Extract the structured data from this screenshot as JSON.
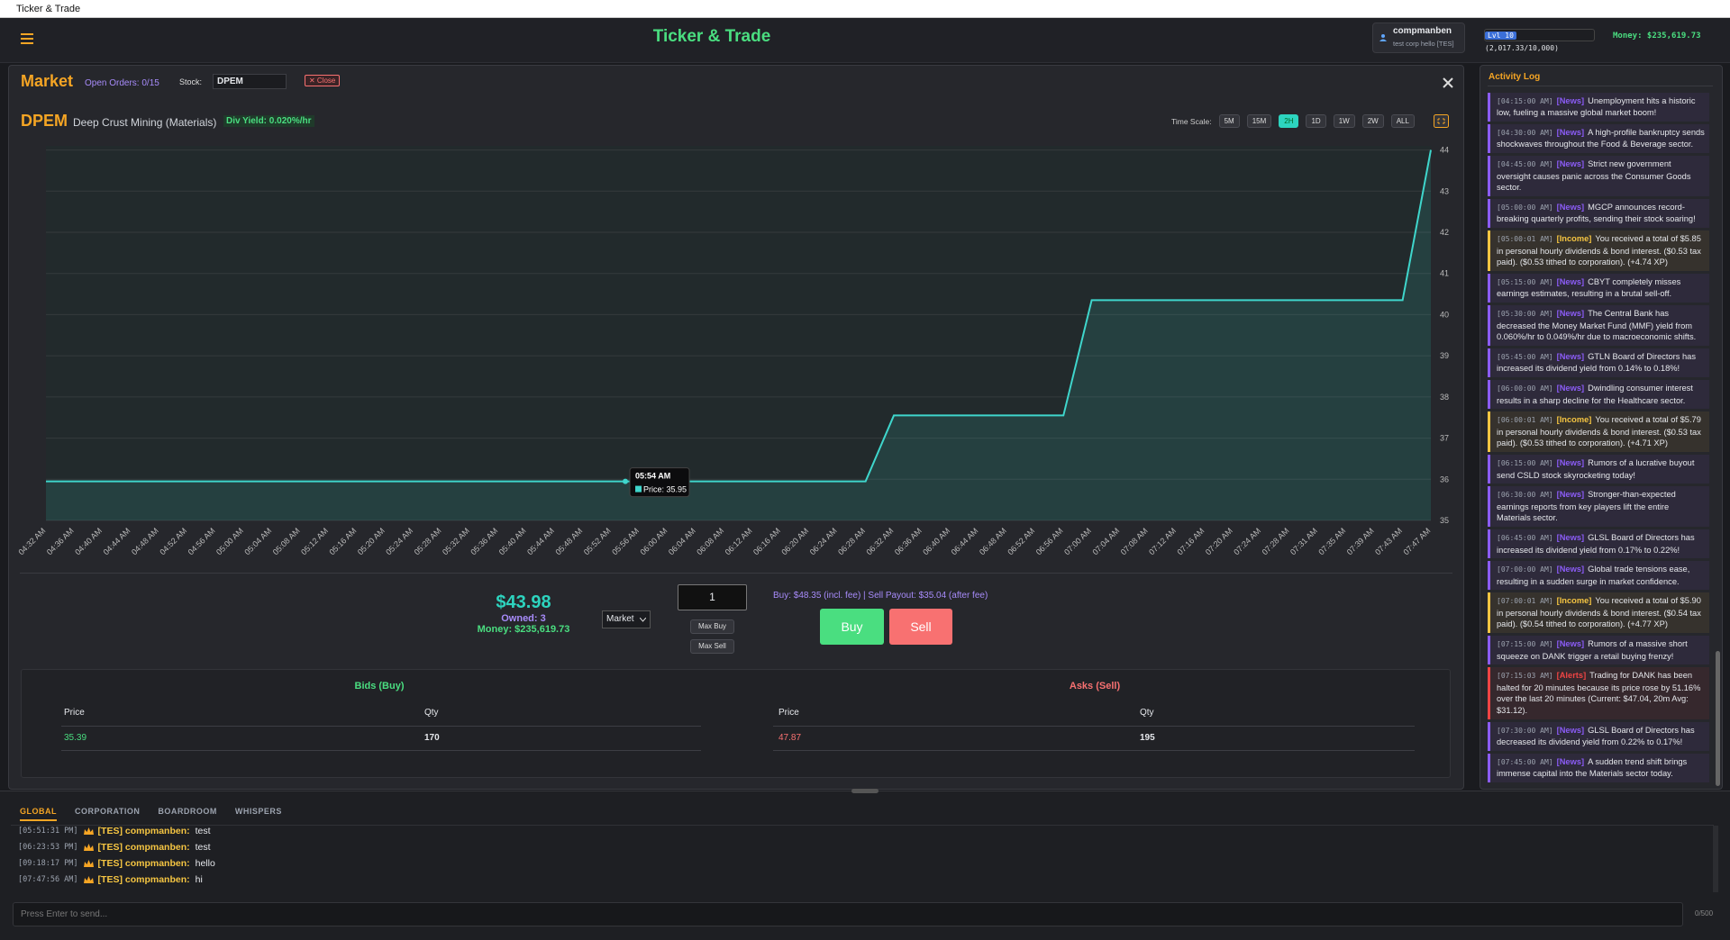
{
  "window_title": "Ticker & Trade",
  "header": {
    "title": "Ticker & Trade",
    "username": "compmanben",
    "corp": "test corp hello [TES]",
    "level": "Lvl 10",
    "xp": "(2,017.33/10,000)",
    "money": "Money: $235,619.73"
  },
  "market": {
    "title": "Market",
    "open_orders": "Open Orders: 0/15",
    "stock_label": "Stock:",
    "stock_input": "DPEM",
    "close": "✕ Close",
    "symbol": "DPEM",
    "name": "Deep Crust Mining (Materials)",
    "div_yield": "Div Yield: 0.020%/hr",
    "time_scale": {
      "label": "Time Scale:",
      "options": [
        "5M",
        "15M",
        "2H",
        "1D",
        "1W",
        "2W",
        "ALL"
      ],
      "active_index": 2
    }
  },
  "chart_data": {
    "type": "line",
    "color": "#3fd6cc",
    "x": [
      "04:32 AM",
      "04:36 AM",
      "04:40 AM",
      "04:44 AM",
      "04:48 AM",
      "04:52 AM",
      "04:56 AM",
      "05:00 AM",
      "05:04 AM",
      "05:08 AM",
      "05:12 AM",
      "05:16 AM",
      "05:20 AM",
      "05:24 AM",
      "05:28 AM",
      "05:32 AM",
      "05:36 AM",
      "05:40 AM",
      "05:44 AM",
      "05:48 AM",
      "05:52 AM",
      "05:56 AM",
      "06:00 AM",
      "06:04 AM",
      "06:08 AM",
      "06:12 AM",
      "06:16 AM",
      "06:20 AM",
      "06:24 AM",
      "06:28 AM",
      "06:32 AM",
      "06:36 AM",
      "06:40 AM",
      "06:44 AM",
      "06:48 AM",
      "06:52 AM",
      "06:56 AM",
      "07:00 AM",
      "07:04 AM",
      "07:08 AM",
      "07:12 AM",
      "07:16 AM",
      "07:20 AM",
      "07:24 AM",
      "07:28 AM",
      "07:31 AM",
      "07:35 AM",
      "07:39 AM",
      "07:43 AM",
      "07:47 AM"
    ],
    "values": [
      35.95,
      35.95,
      35.95,
      35.95,
      35.95,
      35.95,
      35.95,
      35.95,
      35.95,
      35.95,
      35.95,
      35.95,
      35.95,
      35.95,
      35.95,
      35.95,
      35.95,
      35.95,
      35.95,
      35.95,
      35.95,
      35.95,
      35.95,
      35.95,
      35.95,
      35.95,
      35.95,
      35.95,
      35.95,
      35.95,
      37.55,
      37.55,
      37.55,
      37.55,
      37.55,
      37.55,
      37.55,
      40.35,
      40.35,
      40.35,
      40.35,
      40.35,
      40.35,
      40.35,
      40.35,
      40.35,
      40.35,
      40.35,
      40.35,
      44.0
    ],
    "ylim": [
      35,
      44.1
    ],
    "yticks": [
      35,
      36,
      37,
      38,
      39,
      40,
      41,
      42,
      43,
      44
    ],
    "grid": true,
    "tooltip": {
      "time": "05:54 AM",
      "text": "Price: 35.95"
    }
  },
  "trade": {
    "price": "$43.98",
    "owned": "Owned: 3",
    "money": "Money: $235,619.73",
    "order_type": "Market",
    "quantity": "1",
    "max_buy": "Max Buy",
    "max_sell": "Max Sell",
    "info": "Buy: $48.35 (incl. fee) | Sell Payout: $35.04 (after fee)",
    "buy": "Buy",
    "sell": "Sell"
  },
  "order_book": {
    "bids": {
      "title": "Bids (Buy)",
      "headers": [
        "Price",
        "Qty"
      ],
      "rows": [
        [
          "35.39",
          "170"
        ]
      ]
    },
    "asks": {
      "title": "Asks (Sell)",
      "headers": [
        "Price",
        "Qty"
      ],
      "rows": [
        [
          "47.87",
          "195"
        ]
      ]
    }
  },
  "log": {
    "title": "Activity Log",
    "entries": [
      {
        "time": "[04:15:00 AM]",
        "tag": "[News]",
        "text": "Unemployment hits a historic low, fueling a massive global market boom!",
        "color": "#8b5cf6"
      },
      {
        "time": "[04:30:00 AM]",
        "tag": "[News]",
        "text": "A high-profile bankruptcy sends shockwaves throughout the Food & Beverage sector.",
        "color": "#8b5cf6"
      },
      {
        "time": "[04:45:00 AM]",
        "tag": "[News]",
        "text": "Strict new government oversight causes panic across the Consumer Goods sector.",
        "color": "#8b5cf6"
      },
      {
        "time": "[05:00:00 AM]",
        "tag": "[News]",
        "text": "MGCP announces record-breaking quarterly profits, sending their stock soaring!",
        "color": "#8b5cf6"
      },
      {
        "time": "[05:00:01 AM]",
        "tag": "[Income]",
        "text": "You received a total of $5.85 in personal hourly dividends & bond interest. ($0.53 tax paid). ($0.53 tithed to corporation). (+4.74 XP)",
        "color": "#f5c542"
      },
      {
        "time": "[05:15:00 AM]",
        "tag": "[News]",
        "text": "CBYT completely misses earnings estimates, resulting in a brutal sell-off.",
        "color": "#8b5cf6"
      },
      {
        "time": "[05:30:00 AM]",
        "tag": "[News]",
        "text": "The Central Bank has decreased the Money Market Fund (MMF) yield from 0.060%/hr to 0.049%/hr due to macroeconomic shifts.",
        "color": "#8b5cf6"
      },
      {
        "time": "[05:45:00 AM]",
        "tag": "[News]",
        "text": "GTLN Board of Directors has increased its dividend yield from 0.14% to 0.18%!",
        "color": "#8b5cf6"
      },
      {
        "time": "[06:00:00 AM]",
        "tag": "[News]",
        "text": "Dwindling consumer interest results in a sharp decline for the Healthcare sector.",
        "color": "#8b5cf6"
      },
      {
        "time": "[06:00:01 AM]",
        "tag": "[Income]",
        "text": "You received a total of $5.79 in personal hourly dividends & bond interest. ($0.53 tax paid). ($0.53 tithed to corporation). (+4.71 XP)",
        "color": "#f5c542"
      },
      {
        "time": "[06:15:00 AM]",
        "tag": "[News]",
        "text": "Rumors of a lucrative buyout send CSLD stock skyrocketing today!",
        "color": "#8b5cf6"
      },
      {
        "time": "[06:30:00 AM]",
        "tag": "[News]",
        "text": "Stronger-than-expected earnings reports from key players lift the entire Materials sector.",
        "color": "#8b5cf6"
      },
      {
        "time": "[06:45:00 AM]",
        "tag": "[News]",
        "text": "GLSL Board of Directors has increased its dividend yield from 0.17% to 0.22%!",
        "color": "#8b5cf6"
      },
      {
        "time": "[07:00:00 AM]",
        "tag": "[News]",
        "text": "Global trade tensions ease, resulting in a sudden surge in market confidence.",
        "color": "#8b5cf6"
      },
      {
        "time": "[07:00:01 AM]",
        "tag": "[Income]",
        "text": "You received a total of $5.90 in personal hourly dividends & bond interest. ($0.54 tax paid). ($0.54 tithed to corporation). (+4.77 XP)",
        "color": "#f5c542"
      },
      {
        "time": "[07:15:00 AM]",
        "tag": "[News]",
        "text": "Rumors of a massive short squeeze on DANK trigger a retail buying frenzy!",
        "color": "#8b5cf6"
      },
      {
        "time": "[07:15:03 AM]",
        "tag": "[Alerts]",
        "text": "Trading for DANK has been halted for 20 minutes because its price rose by 51.16% over the last 20 minutes (Current: $47.04, 20m Avg: $31.12).",
        "color": "#ef4444"
      },
      {
        "time": "[07:30:00 AM]",
        "tag": "[News]",
        "text": "GLSL Board of Directors has decreased its dividend yield from 0.22% to 0.17%!",
        "color": "#8b5cf6"
      },
      {
        "time": "[07:45:00 AM]",
        "tag": "[News]",
        "text": "A sudden trend shift brings immense capital into the Materials sector today.",
        "color": "#8b5cf6"
      }
    ]
  },
  "chat": {
    "tabs": [
      "GLOBAL",
      "CORPORATION",
      "BOARDROOM",
      "WHISPERS"
    ],
    "active_index": 0,
    "messages": [
      {
        "time": "[05:51:31 PM]",
        "user": "[TES] compmanben:",
        "text": "test"
      },
      {
        "time": "[06:23:53 PM]",
        "user": "[TES] compmanben:",
        "text": "test"
      },
      {
        "time": "[09:18:17 PM]",
        "user": "[TES] compmanben:",
        "text": "hello"
      },
      {
        "time": "[07:47:56 AM]",
        "user": "[TES] compmanben:",
        "text": "hi"
      }
    ],
    "placeholder": "Press Enter to send...",
    "counter": "0/500"
  }
}
